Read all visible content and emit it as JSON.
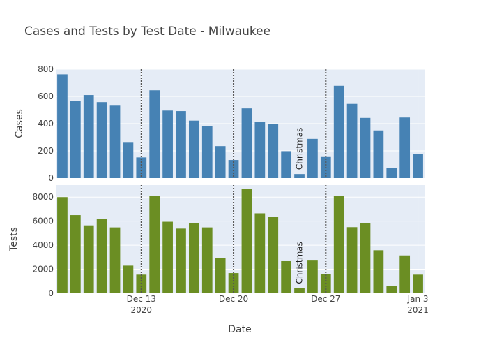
{
  "chart_data": {
    "type": "bar",
    "title": "Cases and Tests by Test Date - Milwaukee",
    "xlabel": "Date",
    "x": [
      "2020-12-07",
      "2020-12-08",
      "2020-12-09",
      "2020-12-10",
      "2020-12-11",
      "2020-12-12",
      "2020-12-13",
      "2020-12-14",
      "2020-12-15",
      "2020-12-16",
      "2020-12-17",
      "2020-12-18",
      "2020-12-19",
      "2020-12-20",
      "2020-12-21",
      "2020-12-22",
      "2020-12-23",
      "2020-12-24",
      "2020-12-25",
      "2020-12-26",
      "2020-12-27",
      "2020-12-28",
      "2020-12-29",
      "2020-12-30",
      "2020-12-31",
      "2021-01-01",
      "2021-01-02",
      "2021-01-03"
    ],
    "x_ticks": [
      {
        "date": "2020-12-13",
        "label": "Dec 13",
        "year": "2020"
      },
      {
        "date": "2020-12-20",
        "label": "Dec 20",
        "year": ""
      },
      {
        "date": "2020-12-27",
        "label": "Dec 27",
        "year": ""
      },
      {
        "date": "2021-01-03",
        "label": "Jan 3",
        "year": "2021"
      }
    ],
    "vlines": [
      "2020-12-13",
      "2020-12-20",
      "2020-12-27"
    ],
    "panels": [
      {
        "ylabel": "Cases",
        "color": "#4682B4",
        "ylim": [
          0,
          800
        ],
        "yticks": [
          0,
          200,
          400,
          600,
          800
        ],
        "values": [
          762,
          568,
          610,
          558,
          532,
          260,
          152,
          645,
          496,
          492,
          422,
          380,
          235,
          133,
          512,
          412,
          400,
          198,
          30,
          288,
          155,
          678,
          545,
          442,
          350,
          75,
          445,
          178
        ]
      },
      {
        "ylabel": "Tests",
        "color": "#6B8E23",
        "ylim": [
          0,
          9000
        ],
        "yticks": [
          0,
          2000,
          4000,
          6000,
          8000
        ],
        "values": [
          8000,
          6500,
          5650,
          6200,
          5480,
          2300,
          1550,
          8100,
          5950,
          5380,
          5850,
          5480,
          2950,
          1680,
          8700,
          6650,
          6380,
          2730,
          430,
          2780,
          1620,
          8100,
          5500,
          5850,
          3580,
          620,
          3150,
          1550
        ]
      }
    ],
    "annotation": {
      "text": "Christmas",
      "date": "2020-12-25"
    },
    "grid": true,
    "legend": "none"
  }
}
